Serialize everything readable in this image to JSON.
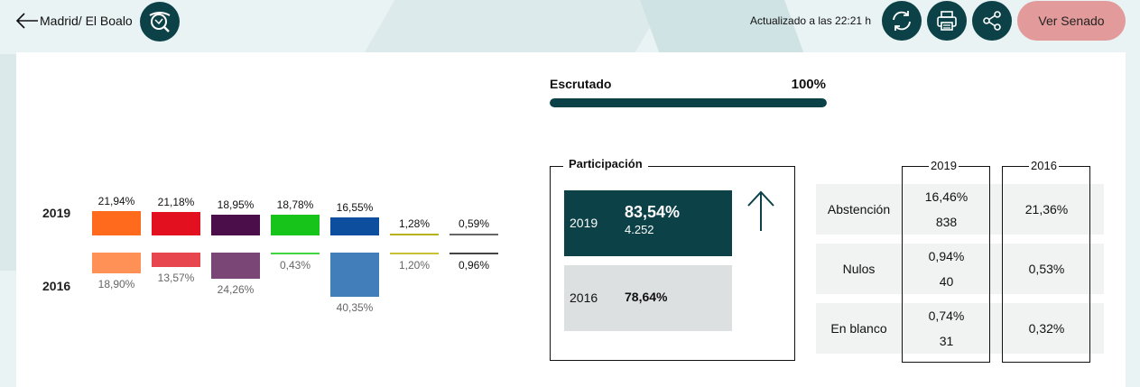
{
  "header": {
    "breadcrumb": "Madrid/ El Boalo",
    "updated": "Actualizado a las 22:21 h",
    "senado_button": "Ver Senado",
    "icons": [
      "back-arrow-icon",
      "search-map-icon",
      "refresh-icon",
      "print-icon",
      "share-icon"
    ]
  },
  "results": {
    "year_current": "2019",
    "year_previous": "2016",
    "parties": [
      {
        "pct_2019": "21,94%",
        "pct_2016": "18,90%",
        "v2019": 21.94,
        "v2016": 18.9,
        "color_2019": "#ff6a1c",
        "color_2016": "#ff9157"
      },
      {
        "pct_2019": "21,18%",
        "pct_2016": "13,57%",
        "v2019": 21.18,
        "v2016": 13.57,
        "color_2019": "#e3101f",
        "color_2016": "#e8464f"
      },
      {
        "pct_2019": "18,95%",
        "pct_2016": "24,26%",
        "v2019": 18.95,
        "v2016": 24.26,
        "color_2019": "#4b0e4a",
        "color_2016": "#7a4676"
      },
      {
        "pct_2019": "18,78%",
        "pct_2016": "0,43%",
        "v2019": 18.78,
        "v2016": 0.43,
        "color_2019": "#16c41a",
        "color_2016": "#3ed442"
      },
      {
        "pct_2019": "16,55%",
        "pct_2016": "40,35%",
        "v2019": 16.55,
        "v2016": 40.35,
        "color_2019": "#0d4f9e",
        "color_2016": "#427fba"
      },
      {
        "pct_2019": "1,28%",
        "pct_2016": "1,20%",
        "v2019": 1.28,
        "v2016": 1.2,
        "color_2019": "#b8b11a",
        "color_2016": "#c9c234"
      },
      {
        "pct_2019": "0,59%",
        "pct_2016": "0,96%",
        "v2019": 0.59,
        "v2016": 0.96,
        "color_2019": "#666666",
        "color_2016": "#444444"
      }
    ]
  },
  "escrutado": {
    "label": "Escrutado",
    "value": "100%",
    "fraction": 1.0
  },
  "participacion": {
    "title": "Participación",
    "rows": [
      {
        "year": "2019",
        "pct": "83,54%",
        "count": "4.252"
      },
      {
        "year": "2016",
        "pct": "78,64%",
        "count": ""
      }
    ]
  },
  "abstention_table": {
    "col_2019": "2019",
    "col_2016": "2016",
    "rows": [
      {
        "label": "Abstención",
        "pct_2019": "16,46%",
        "count_2019": "838",
        "pct_2016": "21,36%"
      },
      {
        "label": "Nulos",
        "pct_2019": "0,94%",
        "count_2019": "40",
        "pct_2016": "0,53%"
      },
      {
        "label": "En blanco",
        "pct_2019": "0,74%",
        "count_2019": "31",
        "pct_2016": "0,32%"
      }
    ]
  },
  "colors": {
    "accent": "#0b4147",
    "senado_button": "#e39a9a"
  }
}
